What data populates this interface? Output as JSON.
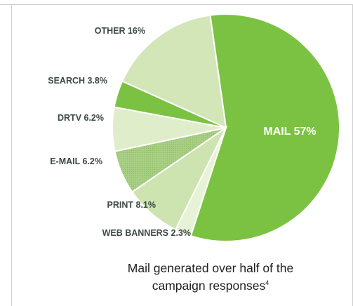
{
  "chart_data": {
    "type": "pie",
    "slices": [
      {
        "label": "MAIL 57%",
        "value": 57,
        "color": "#7cc242"
      },
      {
        "label": "WEB BANNERS 2.3%",
        "value": 2.3,
        "color": "#e8f2d6"
      },
      {
        "label": "PRINT 8.1%",
        "value": 8.1,
        "color": "#cde3b0"
      },
      {
        "label": "E-MAIL 6.2%",
        "value": 6.2,
        "color": "#a9cf85"
      },
      {
        "label": "DRTV 6.2%",
        "value": 6.2,
        "color": "#dfedcb"
      },
      {
        "label": "SEARCH 3.8%",
        "value": 3.8,
        "color": "#7cc242"
      },
      {
        "label": "OTHER 16%",
        "value": 16,
        "color": "#d2e6b8"
      }
    ]
  },
  "caption": {
    "line1": "Mail generated over half of the",
    "line2": "campaign responses",
    "footnote": "4"
  }
}
